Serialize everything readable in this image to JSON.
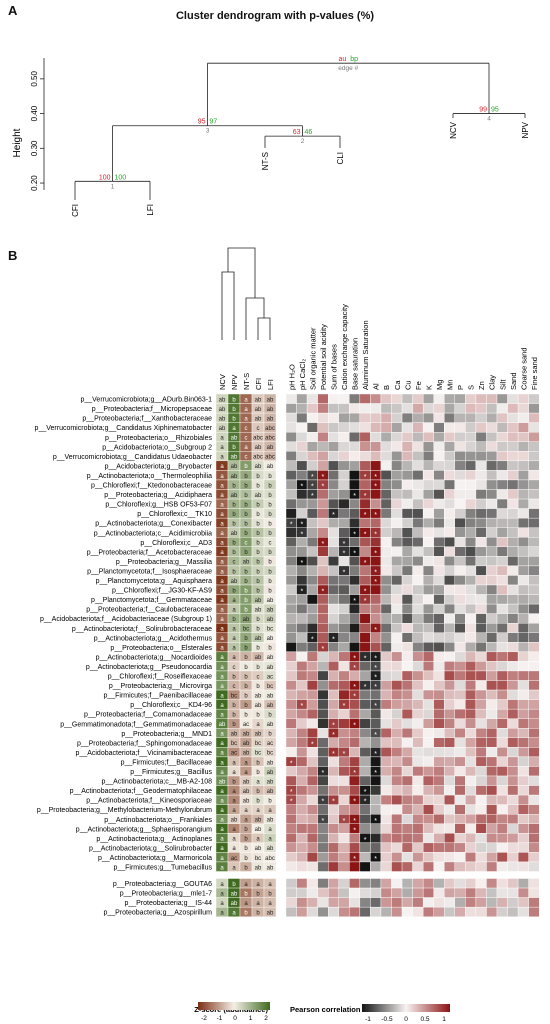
{
  "panel_a": {
    "letter": "A",
    "title": "Cluster dendrogram with p-values (%)",
    "y_axis_label": "Height",
    "y_ticks": [
      "0.20",
      "0.30",
      "0.40",
      "0.50"
    ],
    "leaves": [
      "CFI",
      "LFI",
      "NT-S",
      "CLI",
      "NCV",
      "NPV"
    ],
    "nodes": [
      {
        "au": "100",
        "bp": "100",
        "edge": "1"
      },
      {
        "au": "63",
        "bp": "46",
        "edge": "2"
      },
      {
        "au": "95",
        "bp": "97",
        "edge": "3"
      },
      {
        "au": "99",
        "bp": "95",
        "edge": "4"
      },
      {
        "au": "au",
        "bp": "bp",
        "edge": "edge #"
      }
    ]
  },
  "panel_b": {
    "letter": "B",
    "columns": [
      "NCV",
      "NPV",
      "NT-S",
      "CFI",
      "LFI"
    ],
    "soil_vars": [
      "pH H₂O",
      "pH CaCl₂",
      "Soil organic matter",
      "Potential soil acidity",
      "Sum of bases",
      "Cation exchange capacity",
      "Base saturation",
      "Aluminum Saturation",
      "Al",
      "B",
      "Ca",
      "Cu",
      "Fe",
      "K",
      "Mg",
      "Mn",
      "P",
      "S",
      "Zn",
      "Clay",
      "Silt",
      "Sand",
      "Coarse sand",
      "Fine sand"
    ],
    "rows": [
      {
        "taxon": "p__Verrucomicrobiota;g__ADurb.Bin063-1",
        "letters": [
          "ab",
          "b",
          "a",
          "ab",
          "ab"
        ]
      },
      {
        "taxon": "p__Proteobacteria;f__Micropepsaceae",
        "letters": [
          "ab",
          "b",
          "a",
          "ab",
          "ab"
        ]
      },
      {
        "taxon": "p__Proteobacteria;f__Xanthobacteraceae",
        "letters": [
          "ab",
          "b",
          "a",
          "ab",
          "ab"
        ]
      },
      {
        "taxon": "p__Verrucomicrobiota;g__Candidatus Xiphinematobacter",
        "letters": [
          "ab",
          "a",
          "c",
          "c",
          "abc"
        ]
      },
      {
        "taxon": "p__Proteobacteria;o__Rhizobiales",
        "letters": [
          "a",
          "ab",
          "c",
          "abc",
          "abc"
        ]
      },
      {
        "taxon": "p__Acidobacteriota;o__Subgroup 2",
        "letters": [
          "a",
          "b",
          "a",
          "ab",
          "ab"
        ]
      },
      {
        "taxon": "p__Verrucomicrobiota;g__Candidatus Udaeobacter",
        "letters": [
          "a",
          "ab",
          "c",
          "abc",
          "abc"
        ]
      },
      {
        "taxon": "p__Acidobacteriota;g__Bryobacter",
        "letters": [
          "a",
          "ab",
          "b",
          "ab",
          "ab"
        ]
      },
      {
        "taxon": "p__Actinobacteriota;o__Thermoleophilia",
        "letters": [
          "a",
          "ab",
          "b",
          "b",
          "b"
        ]
      },
      {
        "taxon": "p__Chloroflexi;f__Ktedonobacteraceae",
        "letters": [
          "a",
          "b",
          "b",
          "b",
          "b"
        ]
      },
      {
        "taxon": "p__Proteobacteria;g__Acidiphaera",
        "letters": [
          "a",
          "ab",
          "b",
          "ab",
          "b"
        ]
      },
      {
        "taxon": "p__Chloroflexi;g__HSB OF53-F07",
        "letters": [
          "a",
          "b",
          "b",
          "b",
          "b"
        ]
      },
      {
        "taxon": "p__Chloroflexi;c__TK10",
        "letters": [
          "a",
          "b",
          "b",
          "b",
          "b"
        ]
      },
      {
        "taxon": "p__Actinobacteriota;g__Conexibacter",
        "letters": [
          "a",
          "b",
          "b",
          "b",
          "b"
        ]
      },
      {
        "taxon": "p__Actinobacteriota;c__Acidimicrobiia",
        "letters": [
          "a",
          "ab",
          "b",
          "b",
          "b"
        ]
      },
      {
        "taxon": "p__Chloroflexi;c__AD3",
        "letters": [
          "a",
          "b",
          "c",
          "b",
          "c"
        ]
      },
      {
        "taxon": "p__Proteobacteria;f__Acetobacteraceae",
        "letters": [
          "a",
          "b",
          "b",
          "b",
          "b"
        ]
      },
      {
        "taxon": "p__Proteobacteria;g__Massilia",
        "letters": [
          "a",
          "c",
          "ab",
          "b",
          "b"
        ]
      },
      {
        "taxon": "p__Planctomycetota;f__Isosphaeraceae",
        "letters": [
          "a",
          "b",
          "b",
          "b",
          "b"
        ]
      },
      {
        "taxon": "p__Planctomycetota;g__Aquisphaera",
        "letters": [
          "a",
          "ab",
          "b",
          "b",
          "b"
        ]
      },
      {
        "taxon": "p__Chloroflexi;f__JG30-KF-AS9",
        "letters": [
          "a",
          "b",
          "b",
          "b",
          "b"
        ]
      },
      {
        "taxon": "p__Planctomycetota;f__Gemmataceae",
        "letters": [
          "a",
          "a",
          "b",
          "ab",
          "ab"
        ]
      },
      {
        "taxon": "p__Proteobacteria;f__Caulobacteraceae",
        "letters": [
          "a",
          "a",
          "b",
          "ab",
          "ab"
        ]
      },
      {
        "taxon": "p__Acidobacteriota;f__Acidobacteriaceae (Subgroup 1)",
        "letters": [
          "a",
          "b",
          "ab",
          "b",
          "ab"
        ]
      },
      {
        "taxon": "p__Actinobacteriota;f__Solirubrobacteraceae",
        "letters": [
          "a",
          "a",
          "bc",
          "b",
          "bc"
        ]
      },
      {
        "taxon": "p__Actinobacteriota;g__Acidothermus",
        "letters": [
          "a",
          "a",
          "b",
          "ab",
          "ab"
        ]
      },
      {
        "taxon": "p__Proteobacteria;o__Elsterales",
        "letters": [
          "a",
          "a",
          "b",
          "b",
          "b"
        ]
      },
      {
        "taxon": "p__Actinobacteriota;g__Nocardioides",
        "letters": [
          "a",
          "a",
          "b",
          "ab",
          "ab"
        ]
      },
      {
        "taxon": "p__Actinobacteriota;g__Pseudonocardia",
        "letters": [
          "a",
          "c",
          "b",
          "b",
          "ab"
        ]
      },
      {
        "taxon": "p__Chloroflexi;f__Roseiflexaceae",
        "letters": [
          "a",
          "b",
          "b",
          "c",
          "ac"
        ]
      },
      {
        "taxon": "p__Proteobacteria;g__Microvirga",
        "letters": [
          "a",
          "c",
          "b",
          "b",
          "bc"
        ]
      },
      {
        "taxon": "p__Firmicutes;f__Paenibacillaceae",
        "letters": [
          "a",
          "bc",
          "b",
          "ab",
          "ab"
        ]
      },
      {
        "taxon": "p__Chloroflexi;c__KD4-96",
        "letters": [
          "a",
          "b",
          "b",
          "ab",
          "ab"
        ]
      },
      {
        "taxon": "p__Proteobacteria;f__Comamonadaceae",
        "letters": [
          "a",
          "b",
          "b",
          "b",
          "b"
        ]
      },
      {
        "taxon": "p__Gemmatimonadota;f__Gemmatimonadaceae",
        "letters": [
          "ab",
          "b",
          "ac",
          "a",
          "ab"
        ]
      },
      {
        "taxon": "p__Proteobacteria;g__MND1",
        "letters": [
          "a",
          "ab",
          "ab",
          "ab",
          "b"
        ]
      },
      {
        "taxon": "p__Proteobacteria;f__Sphingomonadaceae",
        "letters": [
          "a",
          "bc",
          "ab",
          "bc",
          "ac"
        ]
      },
      {
        "taxon": "p__Acidobacteriota;f__Vicinamibacteraceae",
        "letters": [
          "a",
          "ac",
          "ab",
          "bc",
          "bc"
        ]
      },
      {
        "taxon": "p__Firmicutes;f__Bacillaceae",
        "letters": [
          "a",
          "a",
          "a",
          "b",
          "ab"
        ]
      },
      {
        "taxon": "p__Firmicutes;g__Bacillus",
        "letters": [
          "a",
          "a",
          "a",
          "b",
          "ab"
        ]
      },
      {
        "taxon": "p__Actinobacteriota;c__MB-A2-108",
        "letters": [
          "ab",
          "b",
          "ab",
          "a",
          "ab"
        ]
      },
      {
        "taxon": "p__Actinobacteriota;f__Geodermatophilaceae",
        "letters": [
          "a",
          "a",
          "ab",
          "b",
          "ab"
        ]
      },
      {
        "taxon": "p__Actinobacteriota;f__Kineosporiaceae",
        "letters": [
          "a",
          "a",
          "ab",
          "b",
          "b"
        ]
      },
      {
        "taxon": "p__Proteobacteria;g__Methylobacterium-Methylorubrum",
        "letters": [
          "a",
          "a",
          "a",
          "a",
          "a"
        ]
      },
      {
        "taxon": "p__Actinobacteriota;o__Frankiales",
        "letters": [
          "a",
          "ab",
          "a",
          "ab",
          "ab"
        ]
      },
      {
        "taxon": "p__Actinobacteriota;g__Sphaerisporangium",
        "letters": [
          "a",
          "a",
          "b",
          "ab",
          "a"
        ]
      },
      {
        "taxon": "p__Actinobacteriota;g__Actinoplanes",
        "letters": [
          "a",
          "a",
          "b",
          "a",
          "a"
        ]
      },
      {
        "taxon": "p__Actinobacteriota;g__Solirubrobacter",
        "letters": [
          "a",
          "a",
          "b",
          "ab",
          "ab"
        ]
      },
      {
        "taxon": "p__Actinobacteriota;g__Marmoricola",
        "letters": [
          "a",
          "ac",
          "b",
          "bc",
          "abc"
        ]
      },
      {
        "taxon": "p__Firmicutes;g__Tumebacillus",
        "letters": [
          "a",
          "a",
          "b",
          "ab",
          "ab"
        ]
      },
      {
        "taxon": "p__Proteobacteria;g__GOUTA6",
        "letters": [
          "a",
          "b",
          "a",
          "a",
          "a"
        ]
      },
      {
        "taxon": "p__Proteobacteria;g__mle1-7",
        "letters": [
          "a",
          "ab",
          "b",
          "b",
          "b"
        ]
      },
      {
        "taxon": "p__Proteobacteria;g__IS-44",
        "letters": [
          "a",
          "ab",
          "a",
          "a",
          "a"
        ]
      },
      {
        "taxon": "p__Proteobacteria;g__Azospirillum",
        "letters": [
          "a",
          "a",
          "b",
          "b",
          "ab"
        ]
      }
    ],
    "legend_z": {
      "title": "Z-score (abundance)",
      "ticks": [
        "-2",
        "-1",
        "0",
        "1",
        "2"
      ]
    },
    "legend_r": {
      "title": "Pearson correlation",
      "ticks": [
        "-1",
        "-0.5",
        "0",
        "0.5",
        "1"
      ]
    },
    "significance_mark": "*"
  },
  "colors": {
    "z_low": "#7a2e12",
    "z_mid": "#f4efe6",
    "z_high": "#3e6b1f",
    "r_neg": "#141414",
    "r_mid": "#f7f3f2",
    "r_pos": "#8b1414",
    "au": "#d9232d",
    "bp": "#26a626",
    "edge": "#777777"
  }
}
